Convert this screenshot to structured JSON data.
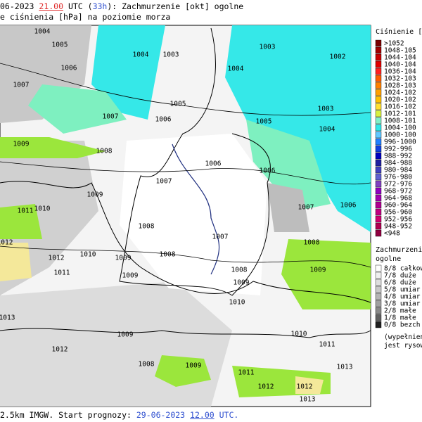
{
  "header": {
    "title_parts": [
      "06-2023 ",
      "21.00",
      " UTC (",
      "33h",
      "): Zachmurzenie [okt] ogolne"
    ],
    "subtitle": "e ciśnienia [hPa] na poziomie morza"
  },
  "footer": {
    "parts": [
      "2.5km IMGW. Start prognozy: ",
      "29-06-2023 ",
      "12.00",
      " UTC."
    ]
  },
  "isobar_labels": [
    "1004",
    "1005",
    "1006",
    "1007",
    "1004",
    "1003",
    "1003",
    "1002",
    "1004",
    "1005",
    "1006",
    "1007",
    "1009",
    "1008",
    "1006",
    "1006",
    "1007",
    "1009",
    "1011",
    "1010",
    "1008",
    "1007",
    "1008",
    "1009",
    "1012",
    "1012",
    "1010",
    "1011",
    "1009",
    "1008",
    "1009",
    "1003",
    "1004",
    "1005",
    "1007",
    "1006",
    "1008",
    "1009",
    "1010",
    "1013",
    "1012",
    "1009",
    "1008",
    "1009",
    "1011",
    "1012",
    "1012",
    "1013",
    "1013",
    "1011",
    "1010"
  ],
  "pressure_legend": {
    "title": "Ciśnienie [hP",
    "items": [
      ">1052",
      "1048-105",
      "1044-104",
      "1040-104",
      "1036-104",
      "1032-103",
      "1028-103",
      "1024-102",
      "1020-102",
      "1016-102",
      "1012-101",
      "1008-101",
      "1004-100",
      "1000-100",
      "996-1000",
      "992-996",
      "988-992",
      "984-988",
      "980-984",
      "976-980",
      "972-976",
      "968-972",
      "964-968",
      "960-964",
      "956-960",
      "952-956",
      "948-952",
      "<948"
    ]
  },
  "cloud_legend": {
    "title": [
      "Zachmurzenie",
      "ogolne"
    ],
    "items": [
      "8/8 całkow",
      "7/8 duże",
      "6/8 duże",
      "5/8 umiar",
      "4/8 umiar",
      "3/8 umiar",
      "2/8 małe",
      "1/8 małe",
      "0/8 bezch"
    ],
    "note": [
      "(wypełnieni",
      "jest rysowa"
    ]
  }
}
